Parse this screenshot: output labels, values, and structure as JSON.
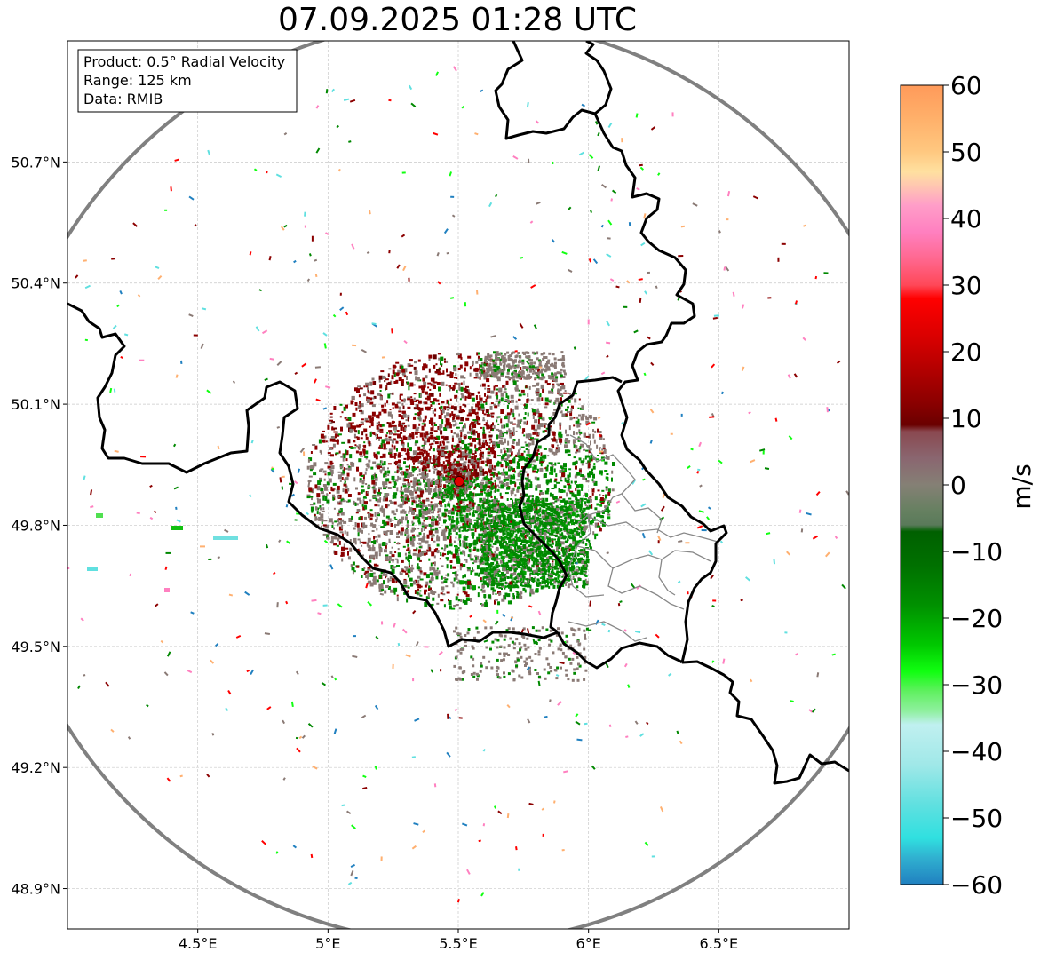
{
  "title": "07.09.2025 01:28 UTC",
  "info_box": {
    "lines": [
      "Product: 0.5° Radial Velocity",
      "Range: 125 km",
      "Data: RMIB"
    ]
  },
  "map": {
    "lon_range": [
      4.0,
      7.0
    ],
    "lat_range": [
      48.8,
      51.0
    ],
    "radar_site": {
      "lon": 5.505,
      "lat": 49.914
    },
    "range_km": 125,
    "x_ticks": [
      {
        "v": 4.5,
        "label": "4.5°E"
      },
      {
        "v": 5.0,
        "label": "5°E"
      },
      {
        "v": 5.5,
        "label": "5.5°E"
      },
      {
        "v": 6.0,
        "label": "6°E"
      },
      {
        "v": 6.5,
        "label": "6.5°E"
      }
    ],
    "y_ticks": [
      {
        "v": 48.9,
        "label": "48.9°N"
      },
      {
        "v": 49.2,
        "label": "49.2°N"
      },
      {
        "v": 49.5,
        "label": "49.5°N"
      },
      {
        "v": 49.8,
        "label": "49.8°N"
      },
      {
        "v": 50.1,
        "label": "50.1°N"
      },
      {
        "v": 50.4,
        "label": "50.4°N"
      },
      {
        "v": 50.7,
        "label": "50.7°N"
      }
    ],
    "grid": true
  },
  "colorbar": {
    "unit": "m/s",
    "min": -60,
    "max": 60,
    "tick_labels": [
      "60",
      "50",
      "40",
      "30",
      "20",
      "10",
      "0",
      "−10",
      "−20",
      "−30",
      "−40",
      "−50",
      "−60"
    ],
    "tick_values": [
      60,
      50,
      40,
      30,
      20,
      10,
      0,
      -10,
      -20,
      -30,
      -40,
      -50,
      -60
    ],
    "stops": [
      {
        "v": 60,
        "c": "#ff9a5a"
      },
      {
        "v": 55,
        "c": "#ffb06a"
      },
      {
        "v": 50,
        "c": "#ffc880"
      },
      {
        "v": 47,
        "c": "#ffe0a0"
      },
      {
        "v": 45,
        "c": "#ffc8b0"
      },
      {
        "v": 42,
        "c": "#ff9ec8"
      },
      {
        "v": 38,
        "c": "#ff80c0"
      },
      {
        "v": 34,
        "c": "#ff6890"
      },
      {
        "v": 30,
        "c": "#ff4858"
      },
      {
        "v": 28,
        "c": "#ff0000"
      },
      {
        "v": 22,
        "c": "#d80000"
      },
      {
        "v": 16,
        "c": "#a80000"
      },
      {
        "v": 12,
        "c": "#880000"
      },
      {
        "v": 9,
        "c": "#6a0000"
      },
      {
        "v": 8,
        "c": "#8a4850"
      },
      {
        "v": 4,
        "c": "#8a6670"
      },
      {
        "v": 0,
        "c": "#858075"
      },
      {
        "v": -4,
        "c": "#658060"
      },
      {
        "v": -6,
        "c": "#5a7a5a"
      },
      {
        "v": -7,
        "c": "#006000"
      },
      {
        "v": -12,
        "c": "#007000"
      },
      {
        "v": -18,
        "c": "#009000"
      },
      {
        "v": -24,
        "c": "#00c800"
      },
      {
        "v": -28,
        "c": "#10ff10"
      },
      {
        "v": -31,
        "c": "#60f060"
      },
      {
        "v": -34,
        "c": "#90f0a0"
      },
      {
        "v": -36,
        "c": "#c0f0f0"
      },
      {
        "v": -42,
        "c": "#a0e8e8"
      },
      {
        "v": -48,
        "c": "#60e0e0"
      },
      {
        "v": -53,
        "c": "#30e0e0"
      },
      {
        "v": -56,
        "c": "#30b0d0"
      },
      {
        "v": -60,
        "c": "#2080c0"
      }
    ]
  },
  "palette": {
    "zero_gray": "#8a7a75",
    "dark_red": "#8b0000",
    "green": "#008800",
    "bright_green": "#10ff10",
    "cyan": "#60e0e0",
    "pink": "#ff80c0",
    "red": "#ff0000",
    "range_ring": "#808080",
    "border": "#000000",
    "district": "#888888",
    "radar_marker": "#e00000"
  }
}
